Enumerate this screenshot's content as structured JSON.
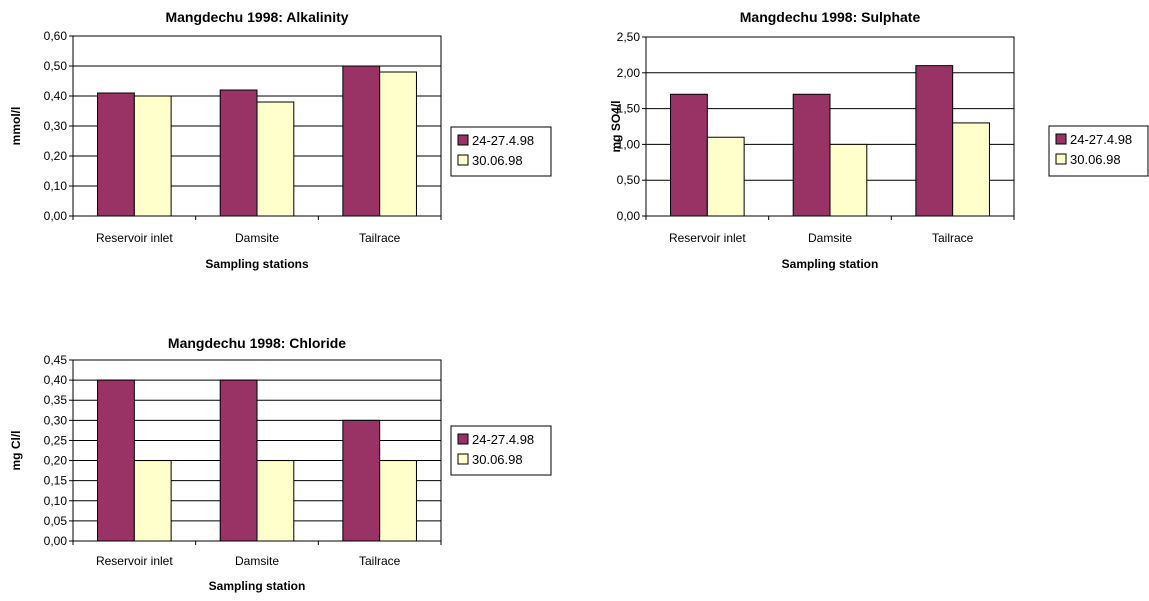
{
  "colors": {
    "series1": "#993366",
    "series2": "#FFFFCC",
    "border": "#000000",
    "grid": "#000000"
  },
  "chart_data": [
    {
      "type": "bar",
      "title": "Mangdechu 1998: Alkalinity",
      "xlabel": "Sampling stations",
      "ylabel": "mmol/l",
      "categories": [
        "Reservoir inlet",
        "Damsite",
        "Tailrace"
      ],
      "ylim": [
        0,
        0.6
      ],
      "yticks": [
        "0,00",
        "0,10",
        "0,20",
        "0,30",
        "0,40",
        "0,50",
        "0,60"
      ],
      "grid": true,
      "legend": "right",
      "series": [
        {
          "name": "24-27.4.98",
          "values": [
            0.41,
            0.42,
            0.5
          ]
        },
        {
          "name": "30.06.98",
          "values": [
            0.4,
            0.38,
            0.48
          ]
        }
      ]
    },
    {
      "type": "bar",
      "title": "Mangdechu 1998: Sulphate",
      "xlabel": "Sampling station",
      "ylabel": "mg SO4/l",
      "categories": [
        "Reservoir inlet",
        "Damsite",
        "Tailrace"
      ],
      "ylim": [
        0,
        2.5
      ],
      "yticks": [
        "0,00",
        "0,50",
        "1,00",
        "1,50",
        "2,00",
        "2,50"
      ],
      "grid": true,
      "legend": "right",
      "series": [
        {
          "name": "24-27.4.98",
          "values": [
            1.7,
            1.7,
            2.1
          ]
        },
        {
          "name": "30.06.98",
          "values": [
            1.1,
            1.0,
            1.3
          ]
        }
      ]
    },
    {
      "type": "bar",
      "title": "Mangdechu 1998: Chloride",
      "xlabel": "Sampling station",
      "ylabel": "mg Cl/l",
      "categories": [
        "Reservoir inlet",
        "Damsite",
        "Tailrace"
      ],
      "ylim": [
        0,
        0.45
      ],
      "yticks": [
        "0,00",
        "0,05",
        "0,10",
        "0,15",
        "0,20",
        "0,25",
        "0,30",
        "0,35",
        "0,40",
        "0,45"
      ],
      "grid": true,
      "legend": "right",
      "series": [
        {
          "name": "24-27.4.98",
          "values": [
            0.4,
            0.4,
            0.3
          ]
        },
        {
          "name": "30.06.98",
          "values": [
            0.2,
            0.2,
            0.2
          ]
        }
      ]
    }
  ]
}
